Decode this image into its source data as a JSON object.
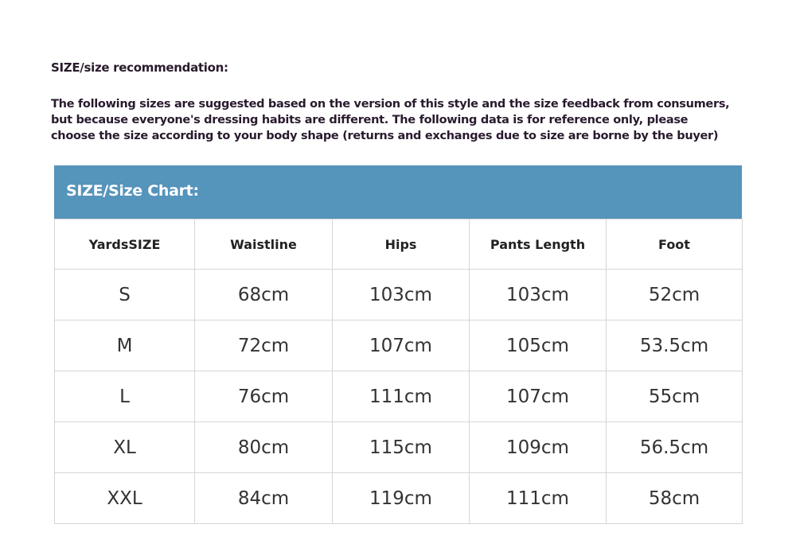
{
  "heading": "SIZE/size recommendation:",
  "intro": "The following sizes are suggested based on the version of this style and the size feedback from consumers,\nbut because everyone's dressing habits are different. The following data is for reference only, please\nchoose the size according to your body shape (returns and exchanges due to size are borne by the buyer)",
  "table": {
    "title": "SIZE/Size Chart:",
    "header_color": "#5594bb",
    "columns": [
      "YardsSIZE",
      "Waistline",
      "Hips",
      "Pants Length",
      "Foot"
    ],
    "rows": [
      [
        "S",
        "68cm",
        "103cm",
        "103cm",
        "52cm"
      ],
      [
        "M",
        "72cm",
        "107cm",
        "105cm",
        "53.5cm"
      ],
      [
        "L",
        "76cm",
        "111cm",
        "107cm",
        "55cm"
      ],
      [
        "XL",
        "80cm",
        "115cm",
        "109cm",
        "56.5cm"
      ],
      [
        "XXL",
        "84cm",
        "119cm",
        "111cm",
        "58cm"
      ]
    ]
  }
}
